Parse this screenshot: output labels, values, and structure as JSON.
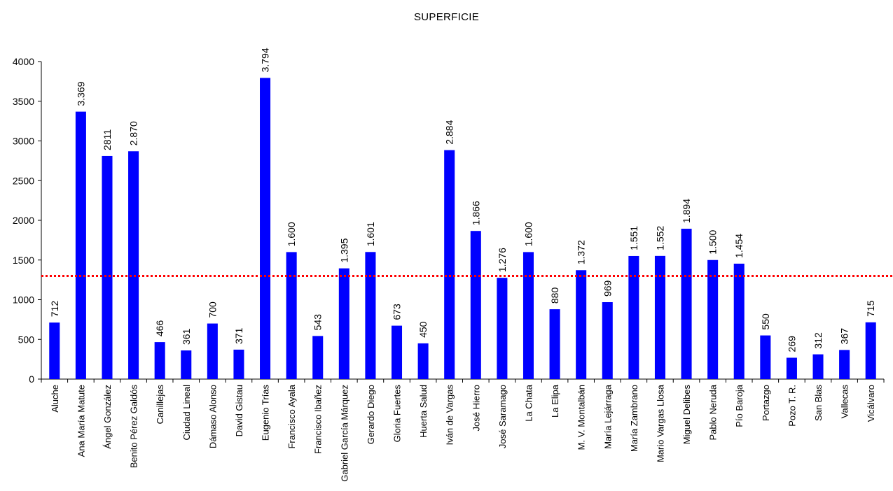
{
  "chart_data": {
    "type": "bar",
    "title": "SUPERFICIE",
    "xlabel": "",
    "ylabel": "",
    "ylim": [
      0,
      4000
    ],
    "yticks": [
      0,
      500,
      1000,
      1500,
      2000,
      2500,
      3000,
      3500,
      4000
    ],
    "grid": false,
    "legend": "none",
    "bar_color": "#0000FF",
    "reference_line": {
      "value": 1300,
      "color": "#FF0000",
      "style": "dotted"
    },
    "categories": [
      "Aluche",
      "Ana María Matute",
      "Ángel González",
      "Benito Pérez Galdós",
      "Canillejas",
      "Ciudad Lineal",
      "Dámaso Alonso",
      "David Gistau",
      "Eugenio Trías",
      "Francisco Ayala",
      "Francisco Ibañez",
      "Gabriel García Márquez",
      "Gerardo Diego",
      "Gloria Fuertes",
      "Huerta Salud",
      "Iván de Vargas",
      "José Hierro",
      "José Saramago",
      "La Chata",
      "La Elipa",
      "M. V. Montalbán",
      "María Lejárraga",
      "María Zambrano",
      "Mario Vargas Llosa",
      "Miguel Delibes",
      "Pablo Neruda",
      "Pío Baroja",
      "Portazgo",
      "Pozo T. R.",
      "San Blas",
      "Vallecas",
      "Vicálvaro"
    ],
    "values": [
      712,
      3369,
      2811,
      2870,
      466,
      361,
      700,
      371,
      3794,
      1600,
      543,
      1395,
      1601,
      673,
      450,
      2884,
      1866,
      1276,
      1600,
      880,
      1372,
      969,
      1551,
      1552,
      1894,
      1500,
      1454,
      550,
      269,
      312,
      367,
      715
    ],
    "data_labels": [
      "712",
      "3.369",
      "2811",
      "2.870",
      "466",
      "361",
      "700",
      "371",
      "3.794",
      "1.600",
      "543",
      "1.395",
      "1.601",
      "673",
      "450",
      "2.884",
      "1.866",
      "1.276",
      "1.600",
      "880",
      "1.372",
      "969",
      "1.551",
      "1.552",
      "1.894",
      "1.500",
      "1.454",
      "550",
      "269",
      "312",
      "367",
      "715"
    ]
  }
}
